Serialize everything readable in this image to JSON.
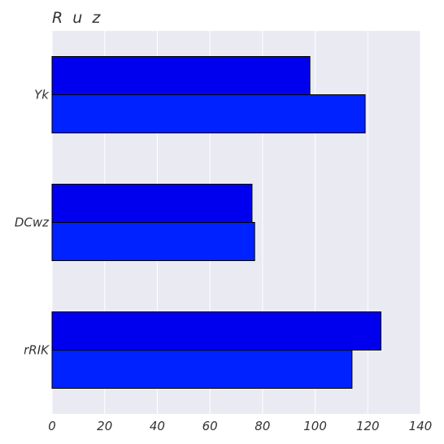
{
  "chart_data": {
    "type": "bar",
    "orientation": "horizontal",
    "title": "R u z",
    "xlabel": "",
    "ylabel": "",
    "categories": [
      "Yk",
      "DCwz",
      "rRIK"
    ],
    "series": [
      {
        "values": [
          98,
          76,
          125
        ],
        "color": "#0000ee"
      },
      {
        "values": [
          119,
          77,
          114
        ],
        "color": "#0022ff"
      }
    ],
    "xlim": [
      0,
      140
    ],
    "xticks": [
      0,
      20,
      40,
      60,
      80,
      100,
      120,
      140
    ],
    "grid": true,
    "legend": "none"
  },
  "colors": {
    "plot_background": "#eaeaf2",
    "grid": "#ffffff",
    "bar_edge": "#000000",
    "text": "#333333"
  }
}
